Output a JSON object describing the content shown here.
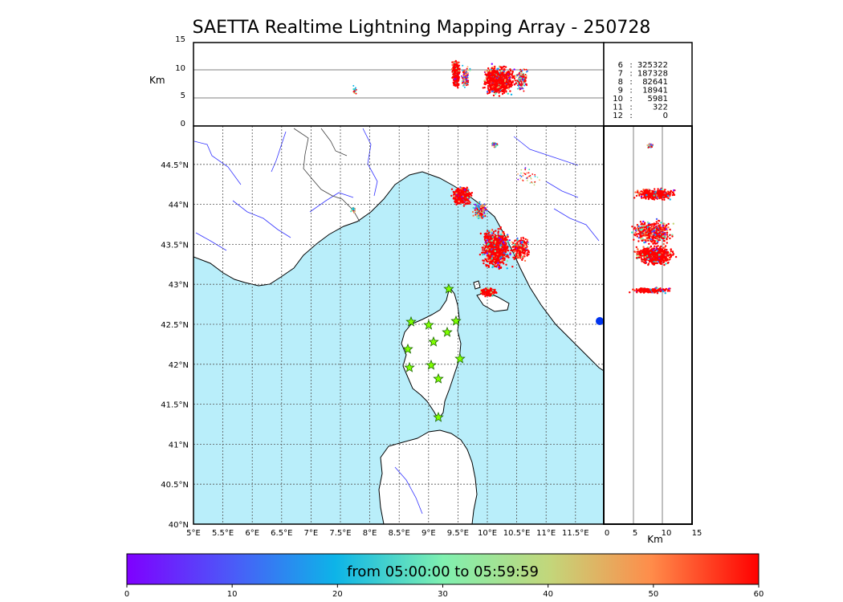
{
  "title": "SAETTA Realtime Lightning Mapping Array - 250728",
  "altitude_panel": {
    "ylabel": "Km",
    "yticks": [
      "0",
      "5",
      "10",
      "15"
    ]
  },
  "side_panel": {
    "xlabel": "Km",
    "xticks": [
      "0",
      "5",
      "10",
      "15"
    ]
  },
  "map": {
    "lon_ticks": [
      "5°E",
      "5.5°E",
      "6°E",
      "6.5°E",
      "7°E",
      "7.5°E",
      "8°E",
      "8.5°E",
      "9°E",
      "9.5°E",
      "10°E",
      "10.5°E",
      "11°E",
      "11.5°E"
    ],
    "lat_ticks": [
      "40°N",
      "40.5°N",
      "41°N",
      "41.5°N",
      "42°N",
      "42.5°N",
      "43°N",
      "43.5°N",
      "44°N",
      "44.5°N"
    ],
    "sea_color": "#b9eefa",
    "land_color": "#ffffff"
  },
  "station_counts": [
    {
      "n": "6",
      "sep": ":",
      "count": "325322",
      "color": "#ff0000"
    },
    {
      "n": "7",
      "sep": ":",
      "count": "187328",
      "color": "#000000"
    },
    {
      "n": "8",
      "sep": ":",
      "count": "82641",
      "color": "#000000"
    },
    {
      "n": "9",
      "sep": ":",
      "count": "18941",
      "color": "#000000"
    },
    {
      "n": "10",
      "sep": ":",
      "count": "5981",
      "color": "#000000"
    },
    {
      "n": "11",
      "sep": ":",
      "count": "322",
      "color": "#000000"
    },
    {
      "n": "12",
      "sep": ":",
      "count": "0",
      "color": "#000000"
    }
  ],
  "colorbar": {
    "label": "from 05:00:00 to 05:59:59",
    "ticks": [
      "0",
      "10",
      "20",
      "30",
      "40",
      "50",
      "60"
    ]
  }
}
